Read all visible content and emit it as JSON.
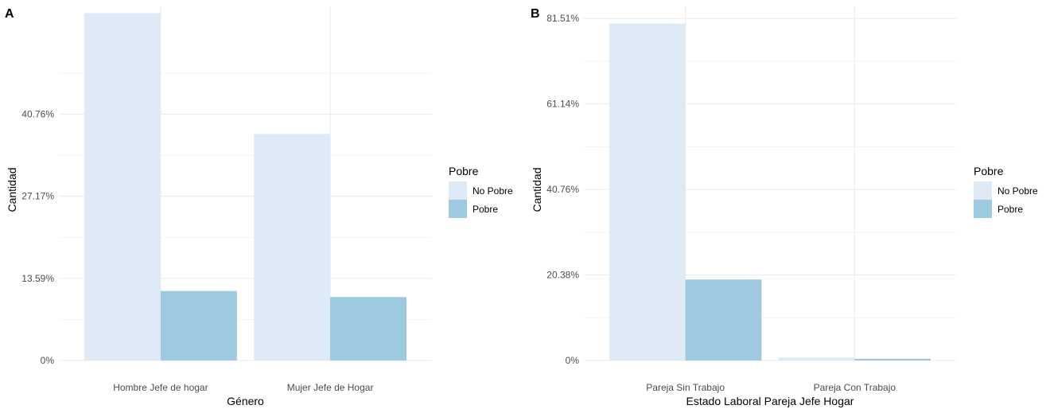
{
  "colors": {
    "No Pobre": "#deebf7",
    "Pobre": "#9ecae1"
  },
  "chart_data": [
    {
      "panel": "A",
      "type": "bar",
      "xlabel": "Género",
      "ylabel": "Cantidad",
      "categories": [
        "Hombre Jefe de hogar",
        "Mujer Jefe de Hogar"
      ],
      "series": [
        {
          "name": "No Pobre",
          "values": [
            57.5,
            37.5
          ]
        },
        {
          "name": "Pobre",
          "values": [
            11.5,
            10.5
          ]
        }
      ],
      "yticks": [
        0,
        13.59,
        27.17,
        40.76
      ],
      "ytick_labels": [
        "0%",
        "13.59%",
        "27.17%",
        "40.76%"
      ],
      "ylim": [
        0,
        58.6
      ],
      "legend": {
        "title": "Pobre",
        "entries": [
          "No Pobre",
          "Pobre"
        ],
        "position": "right"
      },
      "grid": true
    },
    {
      "panel": "B",
      "type": "bar",
      "xlabel": "Estado Laboral Pareja Jefe Hogar",
      "ylabel": "Cantidad",
      "categories": [
        "Pareja Sin Trabajo",
        "Pareja Con Trabajo"
      ],
      "series": [
        {
          "name": "No Pobre",
          "values": [
            80.3,
            0.7
          ]
        },
        {
          "name": "Pobre",
          "values": [
            19.3,
            0.4
          ]
        }
      ],
      "yticks": [
        0,
        20.38,
        40.76,
        61.14,
        81.51
      ],
      "ytick_labels": [
        "0%",
        "20.38%",
        "40.76%",
        "61.14%",
        "81.51%"
      ],
      "ylim": [
        0,
        84.4
      ],
      "legend": {
        "title": "Pobre",
        "entries": [
          "No Pobre",
          "Pobre"
        ],
        "position": "right"
      },
      "grid": true
    }
  ]
}
